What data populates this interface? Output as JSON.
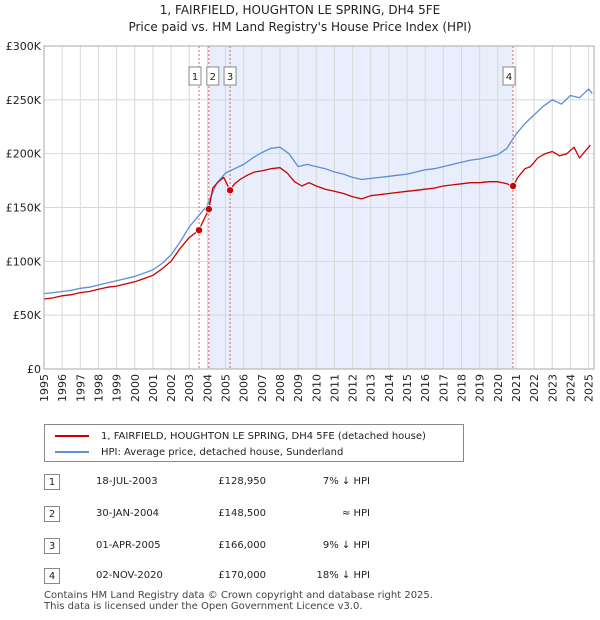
{
  "chart_data": {
    "type": "line",
    "title": "1, FAIRFIELD, HOUGHTON LE SPRING, DH4 5FE",
    "subtitle": "Price paid vs. HM Land Registry's House Price Index (HPI)",
    "xlim": [
      1995,
      2025.3
    ],
    "ylim": [
      0,
      300000
    ],
    "x_ticks": [
      "1995",
      "1996",
      "1997",
      "1998",
      "1999",
      "2000",
      "2001",
      "2002",
      "2003",
      "2004",
      "2005",
      "2006",
      "2007",
      "2008",
      "2009",
      "2010",
      "2011",
      "2012",
      "2013",
      "2014",
      "2015",
      "2016",
      "2017",
      "2018",
      "2019",
      "2020",
      "2021",
      "2022",
      "2023",
      "2024",
      "2025"
    ],
    "y_ticks": [
      {
        "value": 0,
        "label": "£0"
      },
      {
        "value": 50000,
        "label": "£50K"
      },
      {
        "value": 100000,
        "label": "£100K"
      },
      {
        "value": 150000,
        "label": "£150K"
      },
      {
        "value": 200000,
        "label": "£200K"
      },
      {
        "value": 250000,
        "label": "£250K"
      },
      {
        "value": 300000,
        "label": "£300K"
      }
    ],
    "shaded_ranges": [
      [
        2004.08,
        2020.84
      ]
    ],
    "colors": {
      "property": "#cc0000",
      "hpi": "#5b8ed6",
      "shade": "#e8eefb",
      "vline": "#e06060"
    },
    "series": [
      {
        "name": "1, FAIRFIELD, HOUGHTON LE SPRING, DH4 5FE (detached house)",
        "color": "#cc0000",
        "x": [
          1995,
          1995.5,
          1996,
          1996.5,
          1997,
          1997.5,
          1998,
          1998.5,
          1999,
          1999.5,
          2000,
          2000.5,
          2001,
          2001.5,
          2002,
          2002.5,
          2003,
          2003.54,
          2003.7,
          2003.9,
          2004.08,
          2004.3,
          2004.6,
          2004.9,
          2005.25,
          2005.5,
          2005.8,
          2006.2,
          2006.6,
          2007,
          2007.5,
          2008,
          2008.4,
          2008.8,
          2009.2,
          2009.6,
          2010,
          2010.5,
          2011,
          2011.5,
          2012,
          2012.5,
          2013,
          2013.5,
          2014,
          2014.5,
          2015,
          2015.5,
          2016,
          2016.5,
          2017,
          2017.5,
          2018,
          2018.5,
          2019,
          2019.5,
          2020,
          2020.5,
          2020.84,
          2021.1,
          2021.5,
          2021.8,
          2022.2,
          2022.6,
          2023,
          2023.4,
          2023.8,
          2024.2,
          2024.5,
          2024.8,
          2025.1
        ],
        "values": [
          65000,
          66000,
          68000,
          69000,
          71000,
          72000,
          74000,
          76000,
          77000,
          79000,
          81000,
          84000,
          87000,
          93000,
          100000,
          112000,
          122000,
          128950,
          135000,
          142000,
          148500,
          168000,
          174000,
          178000,
          166000,
          172000,
          176000,
          180000,
          183000,
          184000,
          186000,
          187000,
          182000,
          174000,
          170000,
          173000,
          170000,
          167000,
          165000,
          163000,
          160000,
          158000,
          161000,
          162000,
          163000,
          164000,
          165000,
          166000,
          167000,
          168000,
          170000,
          171000,
          172000,
          173000,
          173000,
          174000,
          174000,
          172000,
          170000,
          178000,
          186000,
          188000,
          196000,
          200000,
          202000,
          198000,
          200000,
          206000,
          196000,
          202000,
          208000
        ]
      },
      {
        "name": "HPI: Average price, detached house, Sunderland",
        "color": "#5b8ed6",
        "x": [
          1995,
          1995.5,
          1996,
          1996.5,
          1997,
          1997.5,
          1998,
          1998.5,
          1999,
          1999.5,
          2000,
          2000.5,
          2001,
          2001.5,
          2002,
          2002.5,
          2003,
          2003.5,
          2004,
          2004.5,
          2005,
          2005.5,
          2006,
          2006.5,
          2007,
          2007.5,
          2008,
          2008.5,
          2009,
          2009.5,
          2010,
          2010.5,
          2011,
          2011.5,
          2012,
          2012.5,
          2013,
          2013.5,
          2014,
          2014.5,
          2015,
          2015.5,
          2016,
          2016.5,
          2017,
          2017.5,
          2018,
          2018.5,
          2019,
          2019.5,
          2020,
          2020.5,
          2021,
          2021.5,
          2022,
          2022.5,
          2023,
          2023.5,
          2024,
          2024.5,
          2025,
          2025.2
        ],
        "values": [
          70000,
          71000,
          72000,
          73000,
          75000,
          76000,
          78000,
          80000,
          82000,
          84000,
          86000,
          89000,
          92000,
          98000,
          106000,
          118000,
          132000,
          142000,
          152000,
          172000,
          182000,
          186000,
          190000,
          196000,
          201000,
          205000,
          206000,
          200000,
          188000,
          190000,
          188000,
          186000,
          183000,
          181000,
          178000,
          176000,
          177000,
          178000,
          179000,
          180000,
          181000,
          183000,
          185000,
          186000,
          188000,
          190000,
          192000,
          194000,
          195000,
          197000,
          199000,
          205000,
          218000,
          228000,
          236000,
          244000,
          250000,
          246000,
          254000,
          252000,
          260000,
          256000
        ]
      }
    ],
    "markers": [
      {
        "label": "1",
        "x": 2003.54,
        "value": 128950
      },
      {
        "label": "2",
        "x": 2004.08,
        "value": 148500
      },
      {
        "label": "3",
        "x": 2005.25,
        "value": 166000
      },
      {
        "label": "4",
        "x": 2020.84,
        "value": 170000
      }
    ]
  },
  "legend": {
    "property": "1, FAIRFIELD, HOUGHTON LE SPRING, DH4 5FE (detached house)",
    "hpi": "HPI: Average price, detached house, Sunderland"
  },
  "transactions": [
    {
      "num": "1",
      "date": "18-JUL-2003",
      "price": "£128,950",
      "rel": "7% ↓ HPI"
    },
    {
      "num": "2",
      "date": "30-JAN-2004",
      "price": "£148,500",
      "rel": "≈ HPI"
    },
    {
      "num": "3",
      "date": "01-APR-2005",
      "price": "£166,000",
      "rel": "9% ↓ HPI"
    },
    {
      "num": "4",
      "date": "02-NOV-2020",
      "price": "£170,000",
      "rel": "18% ↓ HPI"
    }
  ],
  "footer": {
    "line1": "Contains HM Land Registry data © Crown copyright and database right 2025.",
    "line2": "This data is licensed under the Open Government Licence v3.0."
  }
}
